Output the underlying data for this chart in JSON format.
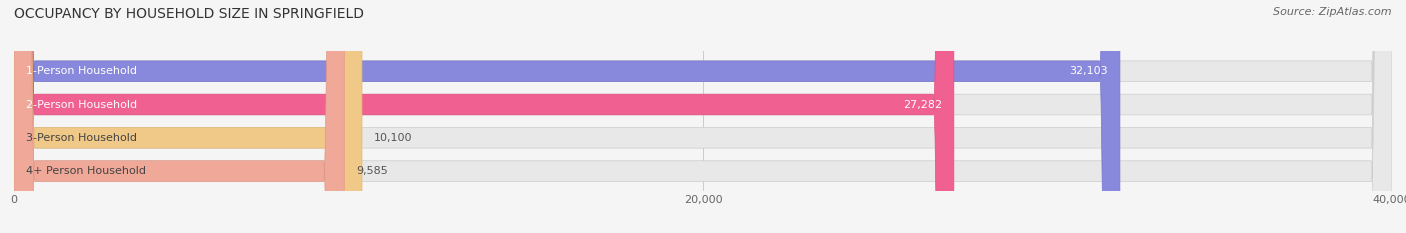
{
  "title": "OCCUPANCY BY HOUSEHOLD SIZE IN SPRINGFIELD",
  "source": "Source: ZipAtlas.com",
  "categories": [
    "1-Person Household",
    "2-Person Household",
    "3-Person Household",
    "4+ Person Household"
  ],
  "values": [
    32103,
    27282,
    10100,
    9585
  ],
  "bar_colors": [
    "#8888dd",
    "#f06090",
    "#f0c888",
    "#f0a898"
  ],
  "bar_edge_colors": [
    "#7777cc",
    "#e05080",
    "#e0b878",
    "#e09888"
  ],
  "xlim": [
    0,
    40000
  ],
  "xticks": [
    0,
    20000,
    40000
  ],
  "xticklabels": [
    "0",
    "20,000",
    "40,000"
  ],
  "title_fontsize": 10,
  "source_fontsize": 8,
  "label_fontsize": 8,
  "bar_label_fontsize": 8,
  "background_color": "#f5f5f5",
  "bar_bg_color": "#e8e8e8"
}
